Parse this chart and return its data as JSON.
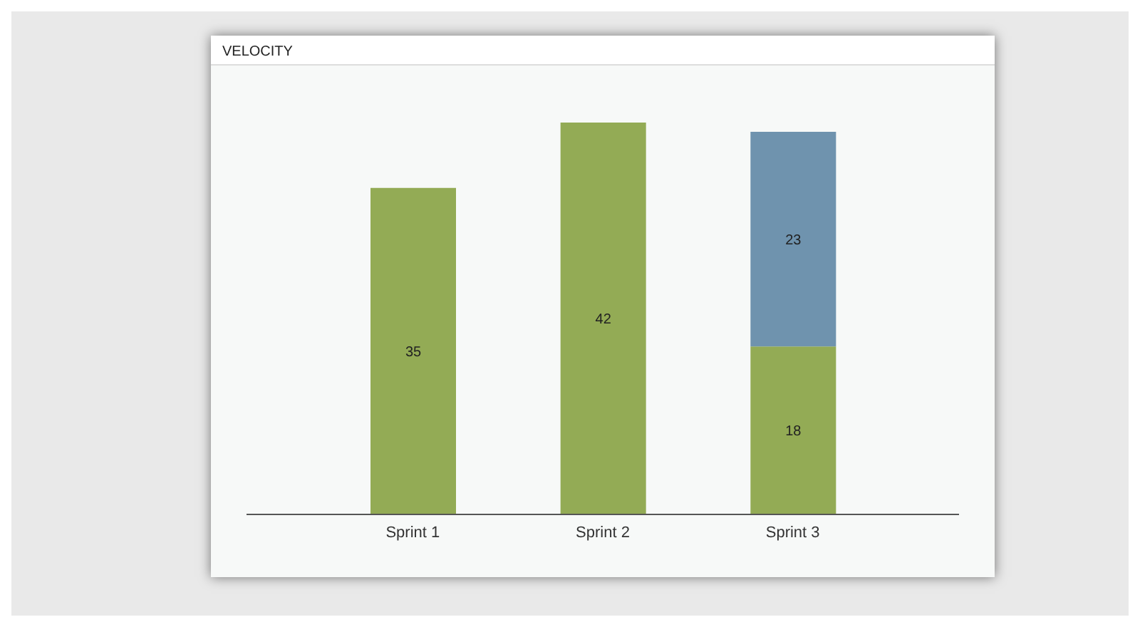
{
  "chart_data": {
    "type": "bar",
    "title": "VELOCITY",
    "categories": [
      "Sprint 1",
      "Sprint 2",
      "Sprint 3"
    ],
    "stacked": true,
    "data_labels": true,
    "series": [
      {
        "color": "#93ab55",
        "values": [
          35,
          42,
          18
        ]
      },
      {
        "color": "#6f93ae",
        "values": [
          null,
          null,
          23
        ]
      }
    ]
  }
}
